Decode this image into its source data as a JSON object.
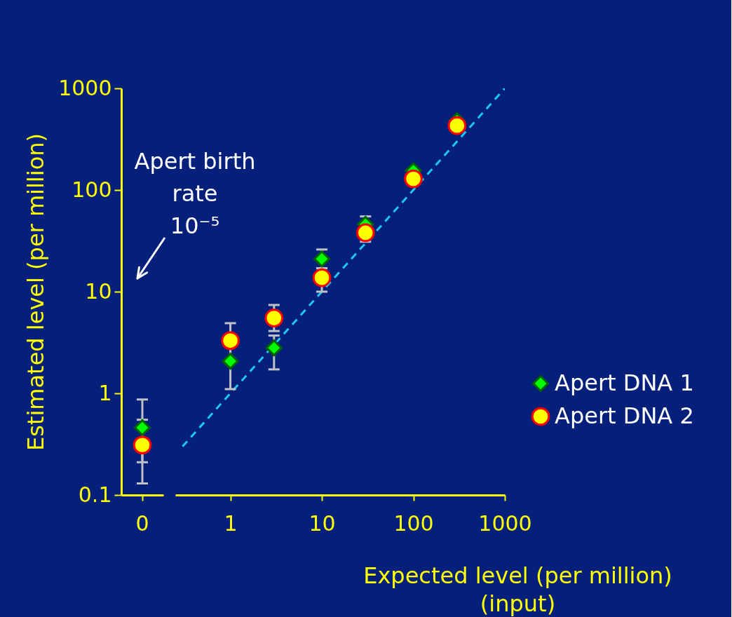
{
  "chart_data": [
    {
      "type": "scatter",
      "categories": [
        "0"
      ],
      "ylim": [
        0.1,
        1000
      ],
      "yticks": [
        0.1,
        1,
        10,
        100,
        1000
      ],
      "log": "y",
      "ylabel": "Estimated level (per million)",
      "tick_labels": "xy",
      "series": [
        {
          "color": "#00ff00",
          "marker": "diamond",
          "values": [
            0.46
          ],
          "errors": [
            [
              0.21,
              0.87
            ]
          ]
        },
        {
          "color": "#ffff00",
          "marker": "circle",
          "values": [
            0.31
          ],
          "errors": [
            [
              0.13,
              0.55
            ]
          ]
        }
      ],
      "annotations": [
        "Apert birth\nrate\n10⁻⁵"
      ]
    },
    {
      "type": "scatter",
      "x": [
        1,
        3,
        10,
        30,
        100,
        300
      ],
      "xlim": [
        0.25,
        1000
      ],
      "xticks": [
        1,
        10,
        100,
        1000
      ],
      "ylim": [
        0.1,
        1000
      ],
      "log": "xy",
      "tick_labels": "x",
      "xlabel": "Expected level (per million)\n(input)",
      "legend": "right",
      "series": [
        {
          "name": "Apert DNA 1",
          "color": "#00ff00",
          "marker": "diamond",
          "values": [
            2.07,
            2.8,
            21,
            46,
            155,
            480
          ],
          "errors": [
            [
              1.1,
              4.9
            ],
            [
              1.72,
              3.7
            ],
            [
              17,
              26
            ],
            [
              31,
              55
            ],
            null,
            null
          ]
        },
        {
          "name": "Apert DNA 2",
          "color": "#ffff00",
          "marker": "circle",
          "values": [
            3.3,
            5.5,
            13.7,
            38,
            129,
            430
          ],
          "errors": [
            null,
            [
              4.1,
              7.4
            ],
            [
              10,
              17
            ],
            null,
            null,
            null
          ]
        },
        {
          "type": "line",
          "color": "#1ec8f0",
          "line_style": "dashed",
          "marker": "none",
          "x": [
            0.3,
            1000
          ],
          "values": [
            0.3,
            1000
          ]
        }
      ]
    }
  ]
}
